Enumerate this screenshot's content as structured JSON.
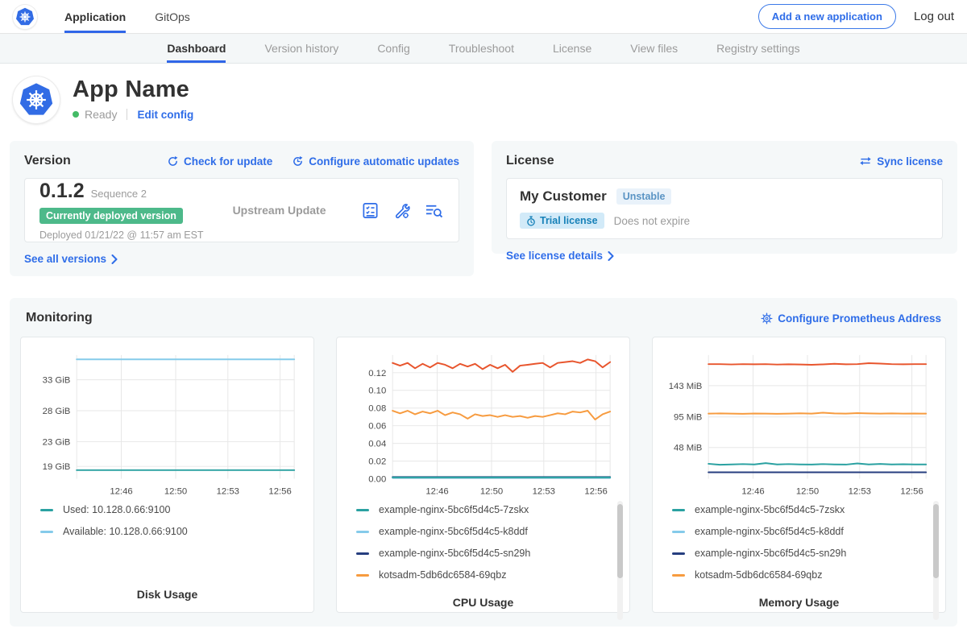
{
  "topnav": {
    "tabs": [
      {
        "label": "Application",
        "active": true
      },
      {
        "label": "GitOps",
        "active": false
      }
    ],
    "add_app_button": "Add a new application",
    "logout_label": "Log out"
  },
  "subnav": {
    "tabs": [
      {
        "label": "Dashboard",
        "active": true
      },
      {
        "label": "Version history",
        "active": false
      },
      {
        "label": "Config",
        "active": false
      },
      {
        "label": "Troubleshoot",
        "active": false
      },
      {
        "label": "License",
        "active": false
      },
      {
        "label": "View files",
        "active": false
      },
      {
        "label": "Registry settings",
        "active": false
      }
    ]
  },
  "app_header": {
    "title": "App Name",
    "status": "Ready",
    "edit_config_label": "Edit config"
  },
  "version_card": {
    "title": "Version",
    "check_update_label": "Check for update",
    "auto_updates_label": "Configure automatic updates",
    "version_number": "0.1.2",
    "sequence_label": "Sequence 2",
    "deployed_badge": "Currently deployed version",
    "deployed_at": "Deployed 01/21/22 @ 11:57 am EST",
    "source_label": "Upstream Update",
    "icon_names": [
      "preflight-checks-icon",
      "edit-config-icon",
      "deploy-logs-icon"
    ],
    "see_all_label": "See all versions"
  },
  "license_card": {
    "title": "License",
    "sync_label": "Sync license",
    "customer_name": "My Customer",
    "channel_badge": "Unstable",
    "license_type_badge": "Trial license",
    "expiry_text": "Does not expire",
    "details_label": "See license details"
  },
  "monitoring": {
    "title": "Monitoring",
    "configure_label": "Configure Prometheus Address"
  },
  "colors": {
    "accent_blue": "#2f6de8",
    "kubernetes_blue": "#326ce5",
    "deployed_badge_green": "#4db98a",
    "status_dot_green": "#44bb66",
    "panel_background": "#f5f8f9",
    "series_teal": "#2aa1a1",
    "series_light_blue": "#85cbea",
    "series_navy": "#263e7f",
    "series_orange": "#f79b3f",
    "series_red": "#e8552d"
  },
  "chart_data": [
    {
      "type": "line",
      "title": "Disk Usage",
      "ylim": [
        17,
        37
      ],
      "yticks": [
        {
          "value": 33,
          "label": "33 GiB"
        },
        {
          "value": 28,
          "label": "28 GiB"
        },
        {
          "value": 23,
          "label": "23 GiB"
        },
        {
          "value": 19,
          "label": "19 GiB"
        }
      ],
      "xticks": [
        {
          "pos": 0.205,
          "label": "12:46"
        },
        {
          "pos": 0.455,
          "label": "12:50"
        },
        {
          "pos": 0.695,
          "label": "12:53"
        },
        {
          "pos": 0.935,
          "label": "12:56"
        }
      ],
      "series": [
        {
          "name": "Available: 10.128.0.66:9100",
          "color": "#85cbea",
          "values": [
            36.3,
            36.3
          ]
        },
        {
          "name": "Used: 10.128.0.66:9100",
          "color": "#2aa1a1",
          "values": [
            18.4,
            18.4
          ]
        }
      ],
      "legend": [
        {
          "label": "Used: 10.128.0.66:9100",
          "color": "#2aa1a1"
        },
        {
          "label": "Available: 10.128.0.66:9100",
          "color": "#85cbea"
        }
      ],
      "scrollbar": false
    },
    {
      "type": "line",
      "title": "CPU Usage",
      "ylim": [
        0,
        0.14
      ],
      "yticks": [
        {
          "value": 0.12,
          "label": "0.12"
        },
        {
          "value": 0.1,
          "label": "0.10"
        },
        {
          "value": 0.08,
          "label": "0.08"
        },
        {
          "value": 0.06,
          "label": "0.06"
        },
        {
          "value": 0.04,
          "label": "0.04"
        },
        {
          "value": 0.02,
          "label": "0.02"
        },
        {
          "value": 0.0,
          "label": "0.00"
        }
      ],
      "xticks": [
        {
          "pos": 0.205,
          "label": "12:46"
        },
        {
          "pos": 0.455,
          "label": "12:50"
        },
        {
          "pos": 0.695,
          "label": "12:53"
        },
        {
          "pos": 0.935,
          "label": "12:56"
        }
      ],
      "series": [
        {
          "name": "example-nginx-5bc6f5d4c5-k8ddf",
          "color": "#85cbea",
          "values": [
            0.001,
            0.001
          ]
        },
        {
          "name": "example-nginx-5bc6f5d4c5-sn29h",
          "color": "#263e7f",
          "values": [
            0.002,
            0.002
          ]
        },
        {
          "name": "example-nginx-5bc6f5d4c5-7zskx",
          "color": "#2aa1a1",
          "values": [
            0.0015,
            0.0015
          ]
        },
        {
          "name": "kotsadm-5db6dc6584-69qbz",
          "color": "#f79b3f",
          "values": [
            0.077,
            0.074,
            0.077,
            0.073,
            0.076,
            0.074,
            0.077,
            0.072,
            0.075,
            0.073,
            0.068,
            0.073,
            0.071,
            0.072,
            0.07,
            0.072,
            0.07,
            0.071,
            0.069,
            0.071,
            0.07,
            0.072,
            0.074,
            0.073,
            0.076,
            0.075,
            0.077,
            0.067,
            0.073,
            0.076
          ]
        },
        {
          "name": "",
          "color": "#e8552d",
          "values": [
            0.131,
            0.128,
            0.131,
            0.125,
            0.13,
            0.126,
            0.131,
            0.129,
            0.125,
            0.13,
            0.127,
            0.13,
            0.124,
            0.129,
            0.125,
            0.129,
            0.121,
            0.128,
            0.129,
            0.13,
            0.131,
            0.126,
            0.131,
            0.132,
            0.133,
            0.131,
            0.135,
            0.133,
            0.126,
            0.132
          ]
        }
      ],
      "legend": [
        {
          "label": "example-nginx-5bc6f5d4c5-7zskx",
          "color": "#2aa1a1"
        },
        {
          "label": "example-nginx-5bc6f5d4c5-k8ddf",
          "color": "#85cbea"
        },
        {
          "label": "example-nginx-5bc6f5d4c5-sn29h",
          "color": "#263e7f"
        },
        {
          "label": "kotsadm-5db6dc6584-69qbz",
          "color": "#f79b3f"
        }
      ],
      "scrollbar": true
    },
    {
      "type": "line",
      "title": "Memory Usage",
      "ylim": [
        0,
        190
      ],
      "yticks": [
        {
          "value": 143,
          "label": "143 MiB"
        },
        {
          "value": 95,
          "label": "95 MiB"
        },
        {
          "value": 48,
          "label": "48 MiB"
        }
      ],
      "xticks": [
        {
          "pos": 0.205,
          "label": "12:46"
        },
        {
          "pos": 0.455,
          "label": "12:50"
        },
        {
          "pos": 0.695,
          "label": "12:53"
        },
        {
          "pos": 0.935,
          "label": "12:56"
        }
      ],
      "series": [
        {
          "name": "example-nginx-5bc6f5d4c5-sn29h",
          "color": "#263e7f",
          "values": [
            10,
            10
          ]
        },
        {
          "name": "example-nginx-5bc6f5d4c5-7zskx",
          "color": "#2aa1a1",
          "values": [
            23,
            21.5,
            22,
            22.5,
            22,
            24,
            22,
            22.5,
            22,
            21.8,
            22.5,
            22,
            21.8,
            23.5,
            22,
            22.8,
            22,
            22.3,
            22,
            22
          ]
        },
        {
          "name": "kotsadm-5db6dc6584-69qbz",
          "color": "#f79b3f",
          "values": [
            100,
            100.3,
            100,
            99.8,
            100.2,
            100,
            99.7,
            100,
            100.5,
            100,
            101.5,
            100.3,
            100,
            100.8,
            100.3,
            100,
            100.4,
            100,
            100.2,
            100
          ]
        },
        {
          "name": "",
          "color": "#e8552d",
          "values": [
            176,
            176,
            175.5,
            176,
            175.7,
            176,
            175.4,
            175.8,
            175.5,
            175,
            175.6,
            176.5,
            175.8,
            176,
            177.5,
            176.8,
            176,
            175.7,
            176,
            176
          ]
        }
      ],
      "legend": [
        {
          "label": "example-nginx-5bc6f5d4c5-7zskx",
          "color": "#2aa1a1"
        },
        {
          "label": "example-nginx-5bc6f5d4c5-k8ddf",
          "color": "#85cbea"
        },
        {
          "label": "example-nginx-5bc6f5d4c5-sn29h",
          "color": "#263e7f"
        },
        {
          "label": "kotsadm-5db6dc6584-69qbz",
          "color": "#f79b3f"
        }
      ],
      "scrollbar": true
    }
  ]
}
